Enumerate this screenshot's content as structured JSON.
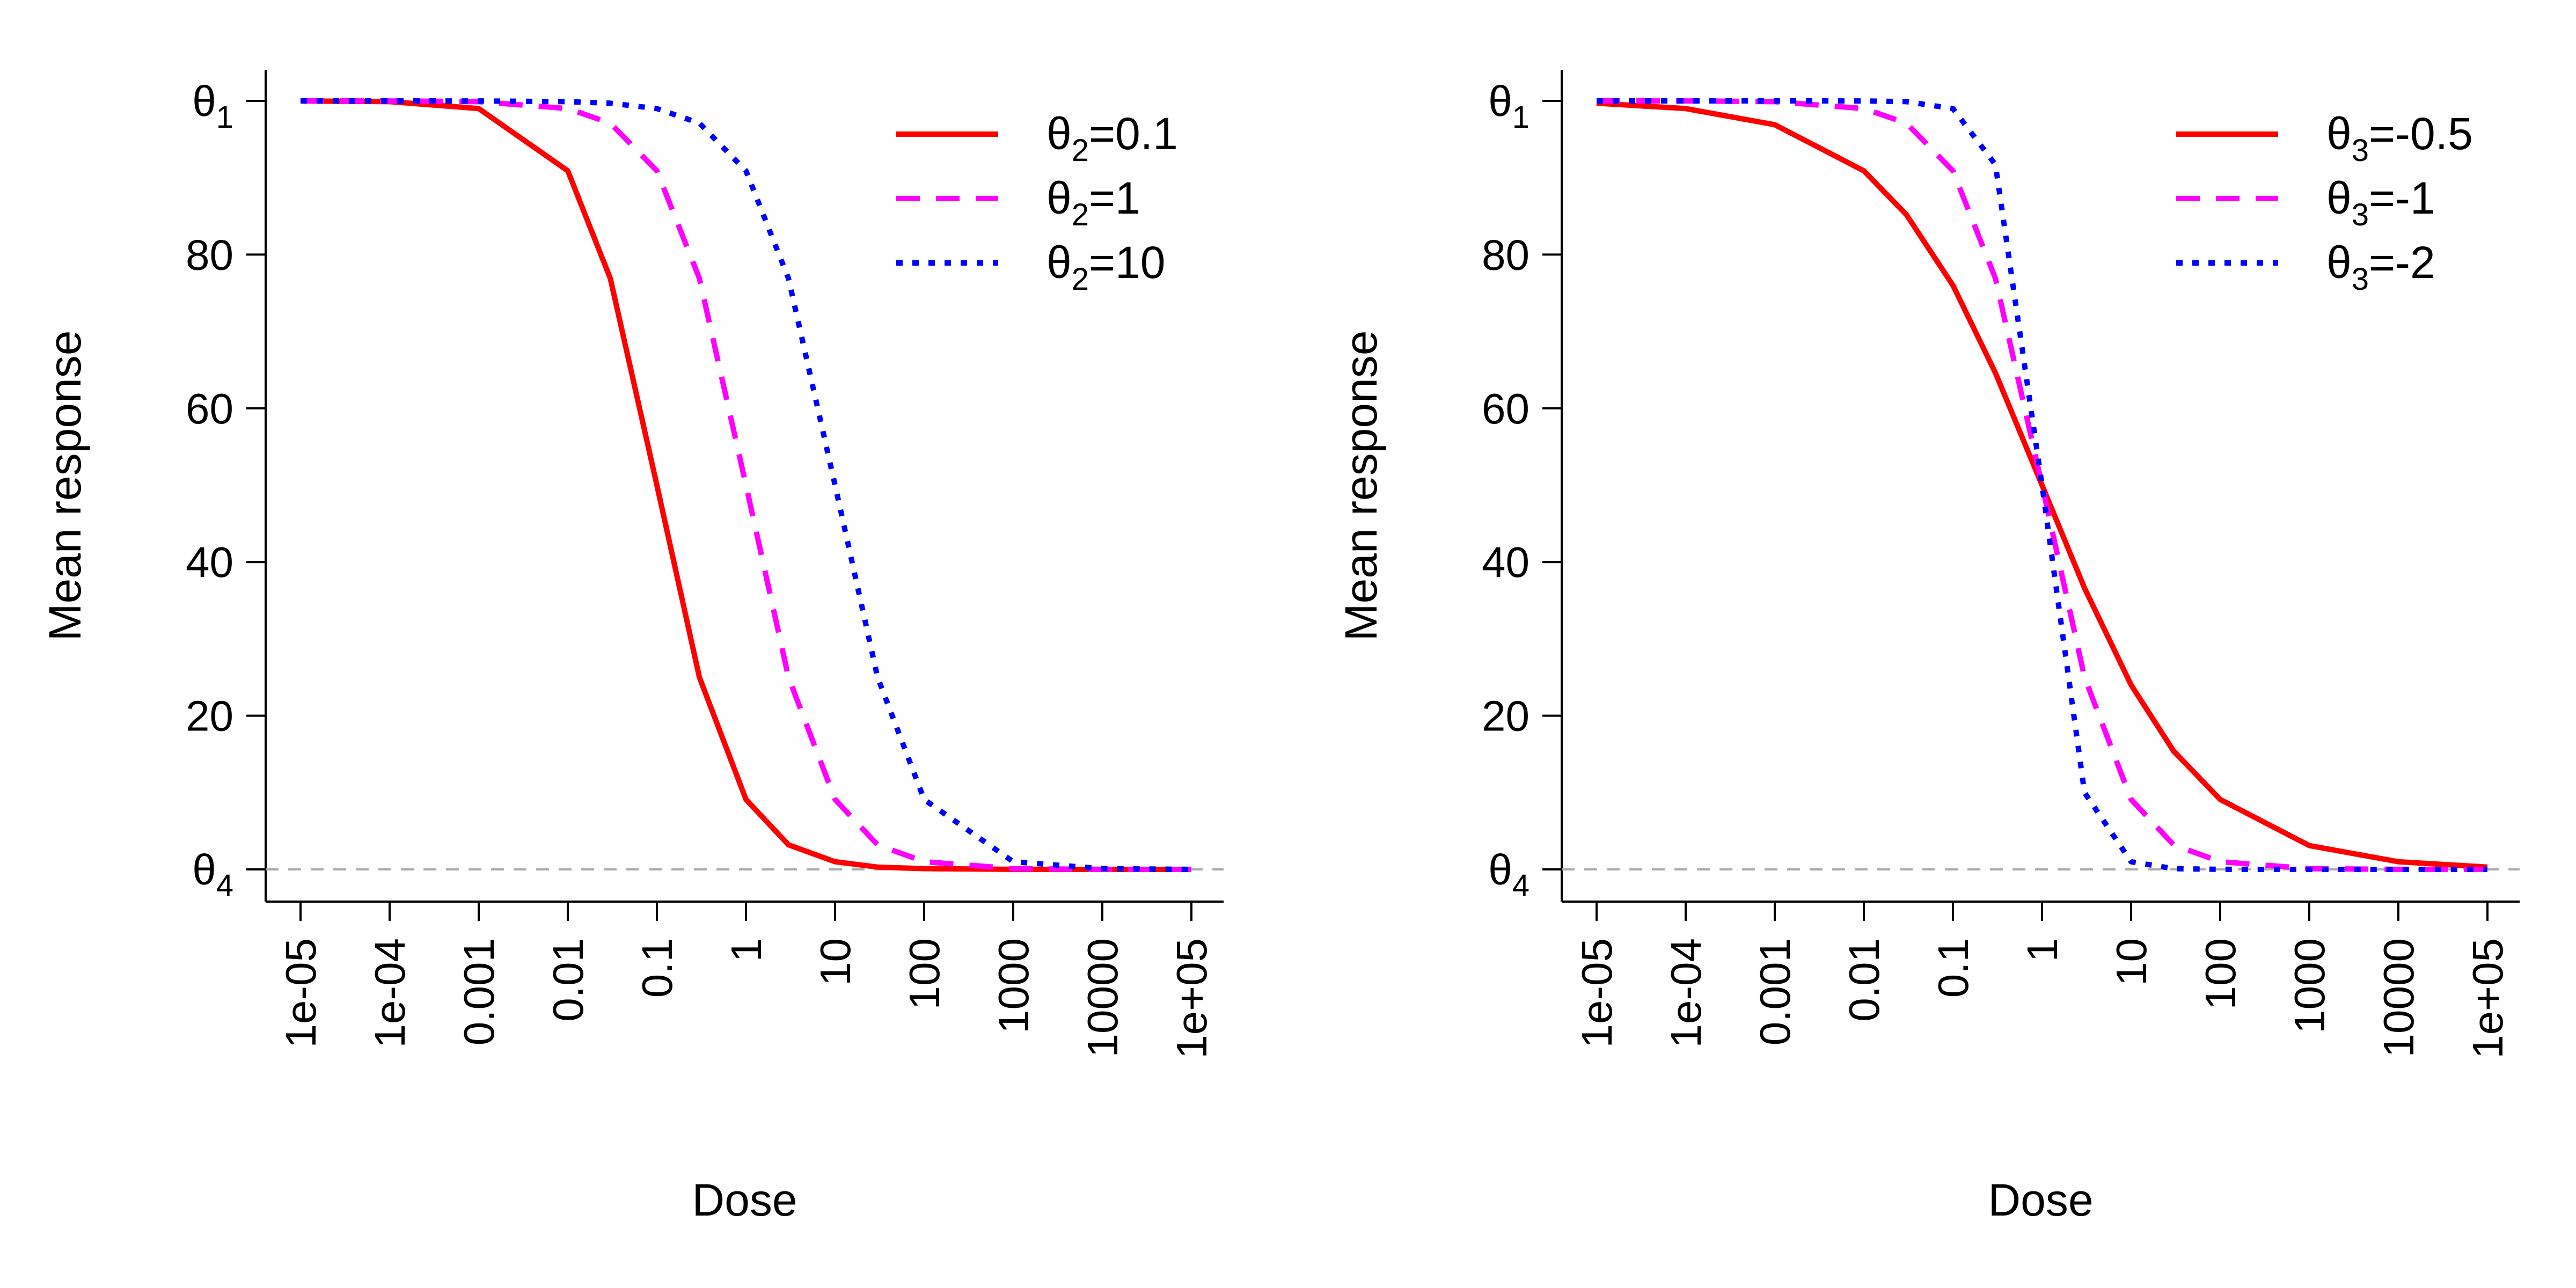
{
  "chart_data": [
    {
      "type": "line",
      "xscale": "log10",
      "xlabel": "Dose",
      "ylabel": "Mean response",
      "xlim": [
        1e-05,
        100000
      ],
      "ylim": [
        0,
        100
      ],
      "x_ticks": [
        1e-05,
        0.0001,
        0.001,
        0.01,
        0.1,
        1,
        10,
        100,
        1000,
        10000,
        100000
      ],
      "x_tick_labels": [
        "1e-05",
        "1e-04",
        "0.001",
        "0.01",
        "0.1",
        "1",
        "10",
        "100",
        "1000",
        "10000",
        "1e+05"
      ],
      "y_ticks": [
        0,
        20,
        40,
        60,
        80,
        100
      ],
      "y_tick_labels": [
        {
          "base": "θ",
          "sub": "4",
          "value": 0
        },
        {
          "text": "20",
          "value": 20
        },
        {
          "text": "40",
          "value": 40
        },
        {
          "text": "60",
          "value": 60
        },
        {
          "text": "80",
          "value": 80
        },
        {
          "base": "θ",
          "sub": "1",
          "value": 100
        }
      ],
      "reference_line": {
        "y": 0,
        "style": "dashed",
        "color": "#aaaaaa"
      },
      "grid": false,
      "legend": "top-right",
      "x": [
        1e-05,
        0.0001,
        0.001,
        0.01,
        0.03,
        0.1,
        0.3,
        1,
        3,
        10,
        30,
        100,
        1000,
        10000,
        100000
      ],
      "series": [
        {
          "name_base": "θ",
          "name_sub": "2",
          "name_rest": "=0.1",
          "color": "#ff0000",
          "dash": "solid",
          "values": [
            99.99,
            99.9,
            99.0,
            90.9,
            76.9,
            50.0,
            25.0,
            9.1,
            3.2,
            1.0,
            0.3,
            0.1,
            0.01,
            0.0,
            0.0
          ]
        },
        {
          "name_base": "θ",
          "name_sub": "2",
          "name_rest": "=1",
          "color": "#ff00ff",
          "dash": "dashed",
          "values": [
            100.0,
            99.99,
            99.9,
            99.0,
            97.1,
            90.9,
            76.9,
            50.0,
            25.0,
            9.1,
            3.2,
            1.0,
            0.1,
            0.01,
            0.0
          ]
        },
        {
          "name_base": "θ",
          "name_sub": "2",
          "name_rest": "=10",
          "color": "#0000ff",
          "dash": "dotted",
          "values": [
            100.0,
            100.0,
            99.99,
            99.9,
            99.7,
            99.0,
            97.1,
            90.9,
            76.9,
            50.0,
            25.0,
            9.1,
            1.0,
            0.1,
            0.01
          ]
        }
      ]
    },
    {
      "type": "line",
      "xscale": "log10",
      "xlabel": "Dose",
      "ylabel": "Mean response",
      "xlim": [
        1e-05,
        100000
      ],
      "ylim": [
        0,
        100
      ],
      "x_ticks": [
        1e-05,
        0.0001,
        0.001,
        0.01,
        0.1,
        1,
        10,
        100,
        1000,
        10000,
        100000
      ],
      "x_tick_labels": [
        "1e-05",
        "1e-04",
        "0.001",
        "0.01",
        "0.1",
        "1",
        "10",
        "100",
        "1000",
        "10000",
        "1e+05"
      ],
      "y_ticks": [
        0,
        20,
        40,
        60,
        80,
        100
      ],
      "y_tick_labels": [
        {
          "base": "θ",
          "sub": "4",
          "value": 0
        },
        {
          "text": "20",
          "value": 20
        },
        {
          "text": "40",
          "value": 40
        },
        {
          "text": "60",
          "value": 60
        },
        {
          "text": "80",
          "value": 80
        },
        {
          "base": "θ",
          "sub": "1",
          "value": 100
        }
      ],
      "reference_line": {
        "y": 0,
        "style": "dashed",
        "color": "#aaaaaa"
      },
      "grid": false,
      "legend": "top-right",
      "x": [
        1e-05,
        0.0001,
        0.001,
        0.01,
        0.03,
        0.1,
        0.3,
        1,
        3,
        10,
        30,
        100,
        1000,
        10000,
        100000
      ],
      "series": [
        {
          "name_base": "θ",
          "name_sub": "3",
          "name_rest": "=-0.5",
          "color": "#ff0000",
          "dash": "solid",
          "values": [
            99.7,
            99.0,
            96.9,
            90.9,
            85.2,
            76.0,
            64.6,
            50.0,
            36.6,
            24.0,
            15.4,
            9.1,
            3.1,
            1.0,
            0.3
          ]
        },
        {
          "name_base": "θ",
          "name_sub": "3",
          "name_rest": "=-1",
          "color": "#ff00ff",
          "dash": "dashed",
          "values": [
            100.0,
            99.99,
            99.9,
            99.0,
            97.1,
            90.9,
            76.9,
            50.0,
            25.0,
            9.1,
            3.2,
            1.0,
            0.1,
            0.01,
            0.0
          ]
        },
        {
          "name_base": "θ",
          "name_sub": "3",
          "name_rest": "=-2",
          "color": "#0000ff",
          "dash": "dotted",
          "values": [
            100.0,
            100.0,
            100.0,
            99.99,
            99.9,
            99.0,
            91.7,
            50.0,
            10.0,
            1.0,
            0.1,
            0.01,
            0.0,
            0.0,
            0.0
          ]
        }
      ]
    }
  ]
}
